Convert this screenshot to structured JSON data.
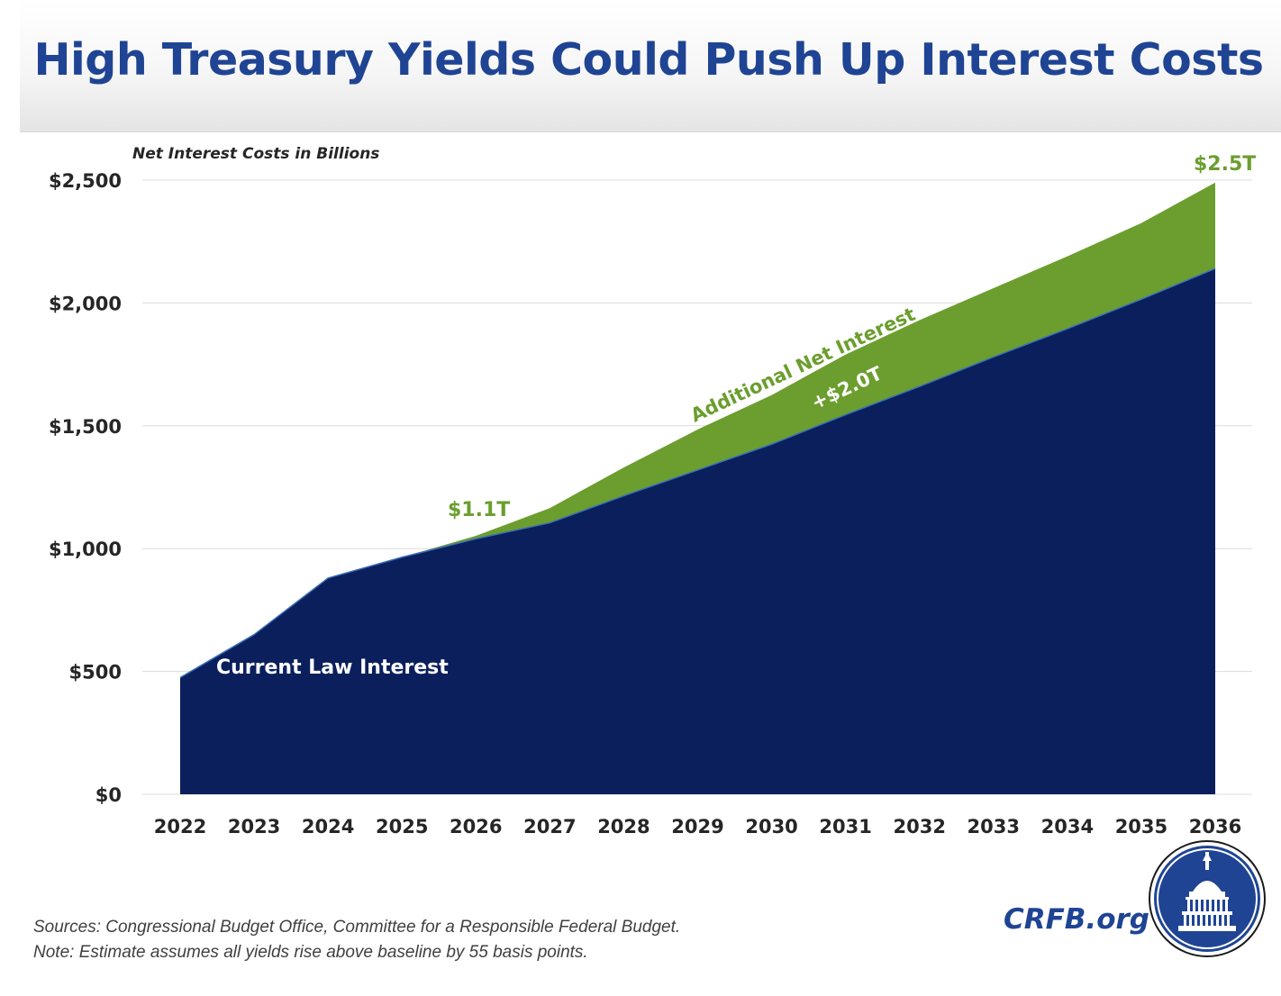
{
  "title": "High Treasury Yields Could Push Up Interest Costs",
  "chart_data": {
    "type": "area",
    "ylabel": "Net Interest Costs in Billions",
    "ylim": [
      0,
      2500
    ],
    "yticks": [
      0,
      500,
      1000,
      1500,
      2000,
      2500
    ],
    "ytick_labels": [
      "$0",
      "$500",
      "$1,000",
      "$1,500",
      "$2,000",
      "$2,500"
    ],
    "categories": [
      "2022",
      "2023",
      "2024",
      "2025",
      "2026",
      "2027",
      "2028",
      "2029",
      "2030",
      "2031",
      "2032",
      "2033",
      "2034",
      "2035",
      "2036"
    ],
    "grid": true,
    "stacked": true,
    "series": [
      {
        "name": "Current Law Interest",
        "color": "#0a1f5c",
        "values": [
          475,
          650,
          880,
          965,
          1040,
          1105,
          1215,
          1320,
          1425,
          1545,
          1660,
          1780,
          1895,
          2015,
          2140
        ]
      },
      {
        "name": "Additional Net Interest",
        "color": "#6b9e2e",
        "values": [
          0,
          0,
          0,
          0,
          12,
          60,
          115,
          165,
          200,
          245,
          270,
          280,
          295,
          310,
          350
        ]
      }
    ],
    "annotations": {
      "start_increase": "$1.1T",
      "end_total": "$2.5T",
      "extra_label": "Additional Net Interest",
      "extra_total": "+$2.0T",
      "base_label": "Current Law Interest"
    }
  },
  "footer": {
    "sources": "Sources: Congressional Budget Office, Committee for a Responsible Federal Budget.",
    "note": "Note: Estimate assumes all yields rise above baseline by 55 basis points.",
    "site": "CRFB.org"
  },
  "logo": {
    "icon": "capitol-dome-seal-icon",
    "color": "#1f4494"
  }
}
